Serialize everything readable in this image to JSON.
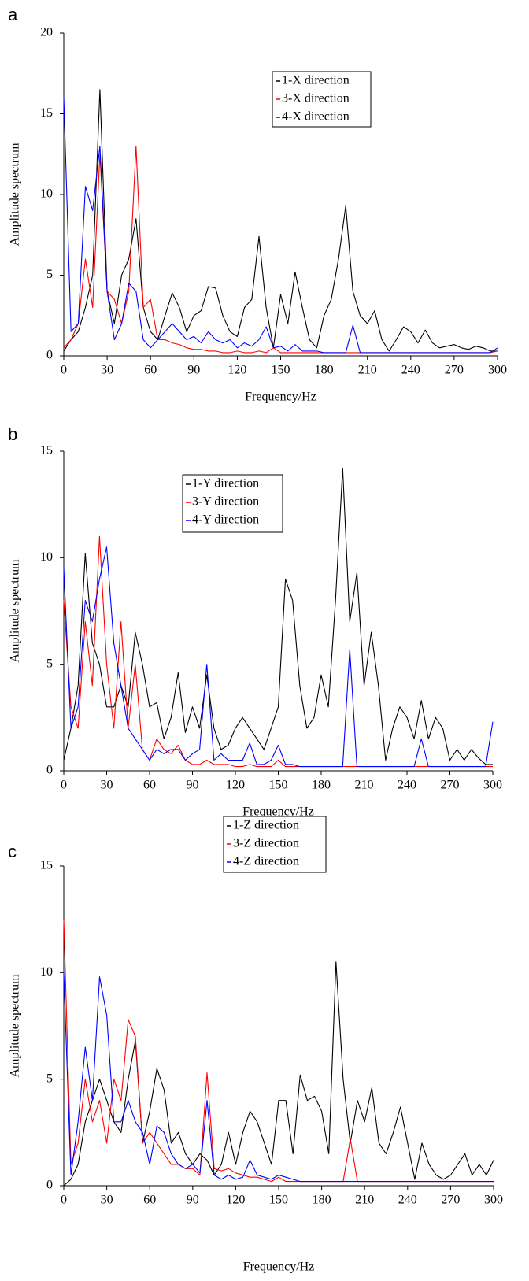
{
  "chart_data": [
    {
      "type": "line",
      "label": "a",
      "xlabel": "Frequency/Hz",
      "ylabel": "Amplitude spectrum",
      "xlim": [
        0,
        300
      ],
      "ylim": [
        0,
        20
      ],
      "xticks": [
        0,
        30,
        60,
        90,
        120,
        150,
        180,
        210,
        240,
        270,
        300
      ],
      "yticks": [
        0,
        5,
        10,
        15,
        20
      ],
      "x": [
        0,
        5,
        10,
        15,
        20,
        25,
        30,
        35,
        40,
        45,
        50,
        55,
        60,
        65,
        70,
        75,
        80,
        85,
        90,
        95,
        100,
        105,
        110,
        115,
        120,
        125,
        130,
        135,
        140,
        145,
        150,
        155,
        160,
        165,
        170,
        175,
        180,
        185,
        190,
        195,
        200,
        205,
        210,
        215,
        220,
        225,
        230,
        235,
        240,
        245,
        250,
        255,
        260,
        265,
        270,
        275,
        280,
        285,
        290,
        295,
        300
      ],
      "series": [
        {
          "name": "1-X direction",
          "color": "#000000",
          "values": [
            0.3,
            1,
            1.5,
            3,
            5,
            16.5,
            4,
            2,
            5,
            6,
            8.5,
            3,
            1.5,
            1,
            2.5,
            3.9,
            3,
            1.5,
            2.5,
            2.8,
            4.3,
            4.2,
            2.5,
            1.5,
            1.2,
            3,
            3.5,
            7.4,
            3,
            0.5,
            3.8,
            2,
            5.2,
            3,
            1,
            0.5,
            2.5,
            3.5,
            6,
            9.3,
            4,
            2.5,
            2,
            2.8,
            1,
            0.3,
            1,
            1.8,
            1.5,
            0.8,
            1.6,
            0.8,
            0.5,
            0.6,
            0.7,
            0.5,
            0.4,
            0.6,
            0.5,
            0.3,
            0.3
          ]
        },
        {
          "name": "3-X direction",
          "color": "#ff0000",
          "values": [
            0.5,
            1,
            2,
            6,
            3,
            12.5,
            4,
            3.5,
            2,
            4,
            13,
            3,
            3.5,
            1,
            1,
            0.8,
            0.7,
            0.5,
            0.4,
            0.4,
            0.3,
            0.3,
            0.2,
            0.2,
            0.3,
            0.2,
            0.2,
            0.3,
            0.2,
            0.5,
            0.2,
            0.2,
            0.2,
            0.2,
            0.2,
            0.2,
            0.2,
            0.2,
            0.2,
            0.2,
            0.2,
            0.2,
            0.2,
            0.2,
            0.2,
            0.2,
            0.2,
            0.2,
            0.2,
            0.2,
            0.2,
            0.2,
            0.2,
            0.2,
            0.2,
            0.2,
            0.2,
            0.2,
            0.2,
            0.2,
            0.3
          ]
        },
        {
          "name": "4-X direction",
          "color": "#0000ff",
          "values": [
            16,
            1.5,
            2,
            10.5,
            9,
            13,
            4,
            1,
            2,
            4.5,
            4,
            1,
            0.5,
            1,
            1.5,
            2,
            1.5,
            1,
            1.2,
            0.8,
            1.5,
            1,
            0.8,
            1,
            0.5,
            0.8,
            0.6,
            1,
            1.8,
            0.5,
            0.6,
            0.3,
            0.7,
            0.3,
            0.3,
            0.3,
            0.2,
            0.2,
            0.2,
            0.2,
            1.9,
            0.2,
            0.2,
            0.2,
            0.2,
            0.2,
            0.2,
            0.2,
            0.2,
            0.2,
            0.2,
            0.2,
            0.2,
            0.2,
            0.2,
            0.2,
            0.2,
            0.2,
            0.2,
            0.2,
            0.5
          ]
        }
      ]
    },
    {
      "type": "line",
      "label": "b",
      "xlabel": "Frequency/Hz",
      "ylabel": "Amplitude spectrum",
      "xlim": [
        0,
        300
      ],
      "ylim": [
        0,
        15
      ],
      "xticks": [
        0,
        30,
        60,
        90,
        120,
        150,
        180,
        210,
        240,
        270,
        300
      ],
      "yticks": [
        0,
        5,
        10,
        15
      ],
      "x": [
        0,
        5,
        10,
        15,
        20,
        25,
        30,
        35,
        40,
        45,
        50,
        55,
        60,
        65,
        70,
        75,
        80,
        85,
        90,
        95,
        100,
        105,
        110,
        115,
        120,
        125,
        130,
        135,
        140,
        145,
        150,
        155,
        160,
        165,
        170,
        175,
        180,
        185,
        190,
        195,
        200,
        205,
        210,
        215,
        220,
        225,
        230,
        235,
        240,
        245,
        250,
        255,
        260,
        265,
        270,
        275,
        280,
        285,
        290,
        295,
        300
      ],
      "series": [
        {
          "name": "1-Y direction",
          "color": "#000000",
          "values": [
            0.5,
            2,
            4,
            10.2,
            6,
            5,
            3,
            3,
            4,
            3,
            6.5,
            5,
            3,
            3.2,
            1.5,
            2.5,
            4.6,
            1.8,
            3,
            2,
            4.5,
            2,
            1,
            1.2,
            2,
            2.5,
            2,
            1.5,
            1,
            2,
            3,
            9,
            8,
            4,
            2,
            2.5,
            4.5,
            3,
            8,
            14.2,
            7,
            9.3,
            4,
            6.5,
            4,
            0.5,
            2,
            3,
            2.5,
            1.5,
            3.3,
            1.5,
            2.5,
            2,
            0.5,
            1,
            0.5,
            1,
            0.6,
            0.3,
            0.3
          ]
        },
        {
          "name": "3-Y direction",
          "color": "#ff0000",
          "values": [
            8,
            3,
            2,
            7,
            4,
            11,
            5,
            2,
            7,
            2,
            5,
            1,
            0.5,
            1.5,
            1,
            0.8,
            1.2,
            0.5,
            0.3,
            0.3,
            0.5,
            0.3,
            0.3,
            0.3,
            0.2,
            0.2,
            0.3,
            0.2,
            0.2,
            0.2,
            0.5,
            0.2,
            0.2,
            0.2,
            0.2,
            0.2,
            0.2,
            0.2,
            0.2,
            0.2,
            0.2,
            0.2,
            0.2,
            0.2,
            0.2,
            0.2,
            0.2,
            0.2,
            0.2,
            0.2,
            0.2,
            0.2,
            0.2,
            0.2,
            0.2,
            0.2,
            0.2,
            0.2,
            0.2,
            0.2,
            0.2
          ]
        },
        {
          "name": "4-Y direction",
          "color": "#0000ff",
          "values": [
            9.5,
            2,
            3,
            8,
            7,
            9,
            10.5,
            6,
            4,
            2,
            1.5,
            1,
            0.5,
            1,
            0.8,
            1,
            1,
            0.5,
            0.8,
            1,
            5,
            0.5,
            0.8,
            0.5,
            0.5,
            0.5,
            1.3,
            0.3,
            0.3,
            0.5,
            1.2,
            0.3,
            0.3,
            0.2,
            0.2,
            0.2,
            0.2,
            0.2,
            0.2,
            0.2,
            5.7,
            0.2,
            0.2,
            0.2,
            0.2,
            0.2,
            0.2,
            0.2,
            0.2,
            0.2,
            1.5,
            0.2,
            0.2,
            0.2,
            0.2,
            0.2,
            0.2,
            0.2,
            0.2,
            0.2,
            2.3
          ]
        }
      ]
    },
    {
      "type": "line",
      "label": "c",
      "xlabel": "Frequency/Hz",
      "ylabel": "Amplitude spectrum",
      "xlim": [
        0,
        300
      ],
      "ylim": [
        0,
        15
      ],
      "xticks": [
        0,
        30,
        60,
        90,
        120,
        150,
        180,
        210,
        240,
        270,
        300
      ],
      "yticks": [
        0,
        5,
        10,
        15
      ],
      "x": [
        0,
        5,
        10,
        15,
        20,
        25,
        30,
        35,
        40,
        45,
        50,
        55,
        60,
        65,
        70,
        75,
        80,
        85,
        90,
        95,
        100,
        105,
        110,
        115,
        120,
        125,
        130,
        135,
        140,
        145,
        150,
        155,
        160,
        165,
        170,
        175,
        180,
        185,
        190,
        195,
        200,
        205,
        210,
        215,
        220,
        225,
        230,
        235,
        240,
        245,
        250,
        255,
        260,
        265,
        270,
        275,
        280,
        285,
        290,
        295,
        300
      ],
      "series": [
        {
          "name": "1-Z direction",
          "color": "#000000",
          "values": [
            0,
            0.3,
            1,
            3,
            4,
            5,
            4,
            3,
            2.5,
            5,
            6.8,
            2,
            3.5,
            5.5,
            4.5,
            2,
            2.5,
            1.5,
            1,
            1.5,
            1.2,
            0.5,
            1,
            2.5,
            1,
            2.5,
            3.5,
            3,
            2,
            1,
            4,
            4,
            1.5,
            5.2,
            4,
            4.2,
            3.5,
            1.5,
            10.5,
            5,
            2,
            4,
            3,
            4.6,
            2,
            1.5,
            2.5,
            3.7,
            2,
            0.3,
            2,
            1,
            0.5,
            0.3,
            0.5,
            1,
            1.5,
            0.5,
            1,
            0.5,
            1.2
          ]
        },
        {
          "name": "3-Z direction",
          "color": "#ff0000",
          "values": [
            12.5,
            1,
            2,
            5,
            3,
            4,
            2,
            5,
            4,
            7.8,
            7,
            2,
            2.5,
            2,
            1.5,
            1,
            1,
            0.8,
            0.8,
            0.5,
            5.3,
            0.8,
            0.7,
            0.8,
            0.6,
            0.5,
            0.4,
            0.4,
            0.3,
            0.2,
            0.4,
            0.2,
            0.2,
            0.2,
            0.2,
            0.2,
            0.2,
            0.2,
            0.2,
            0.2,
            2.2,
            0.2,
            0.2,
            0.2,
            0.2,
            0.2,
            0.2,
            0.2,
            0.2,
            0.2,
            0.2,
            0.2,
            0.2,
            0.2,
            0.2,
            0.2,
            0.2,
            0.2,
            0.2,
            0.2,
            0.2
          ]
        },
        {
          "name": "4-Z direction",
          "color": "#0000ff",
          "values": [
            10,
            0.5,
            3,
            6.5,
            4,
            9.8,
            8,
            3,
            3,
            4,
            3,
            2.5,
            1,
            2.8,
            2.5,
            1.5,
            1,
            0.8,
            1,
            0.6,
            4,
            0.5,
            0.3,
            0.5,
            0.3,
            0.4,
            1.2,
            0.5,
            0.4,
            0.3,
            0.5,
            0.4,
            0.3,
            0.2,
            0.2,
            0.2,
            0.2,
            0.2,
            0.2,
            0.2,
            0.2,
            0.2,
            0.2,
            0.2,
            0.2,
            0.2,
            0.2,
            0.2,
            0.2,
            0.2,
            0.2,
            0.2,
            0.2,
            0.2,
            0.2,
            0.2,
            0.2,
            0.2,
            0.2,
            0.2,
            0.2
          ]
        }
      ]
    }
  ]
}
